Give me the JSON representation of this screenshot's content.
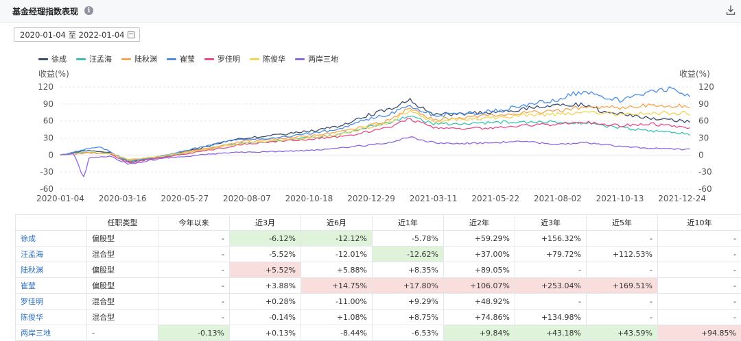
{
  "header": {
    "title": "基金经理指数表现",
    "info_icon": "info-icon",
    "download_icon": "download-icon"
  },
  "date_range": {
    "label": "2020-01-04 至 2022-01-04",
    "icon": "calendar-icon"
  },
  "colors": {
    "徐成": "#3d4d6e",
    "汪孟海": "#39c2b0",
    "陆秋渊": "#f6a44f",
    "崔莹": "#4a8ee8",
    "罗佳明": "#e84a8a",
    "陈俊华": "#f2d356",
    "两岸三地": "#8c66e0",
    "highlight_positive": "#f9dede",
    "highlight_negative": "#dff3da"
  },
  "chart_data": {
    "type": "line",
    "ylabel_left": "收益(%)",
    "ylabel_right": "收益(%)",
    "ylim": [
      -60,
      120
    ],
    "yticks": [
      120,
      90,
      60,
      30,
      0,
      -30,
      -60
    ],
    "x_ticks": [
      "2020-01-04",
      "2020-03-16",
      "2020-05-27",
      "2020-08-07",
      "2020-10-18",
      "2020-12-29",
      "2021-03-11",
      "2021-05-22",
      "2021-08-02",
      "2021-10-13",
      "2021-12-24"
    ],
    "x_start": "2020-01-04",
    "x_end": "2022-01-04",
    "grid": true,
    "legend_position": "top-left",
    "series": [
      {
        "name": "徐成",
        "points": [
          [
            "2020-01-04",
            0
          ],
          [
            "2020-02-03",
            8
          ],
          [
            "2020-03-01",
            5
          ],
          [
            "2020-03-23",
            -12
          ],
          [
            "2020-05-01",
            -2
          ],
          [
            "2020-06-15",
            12
          ],
          [
            "2020-07-15",
            25
          ],
          [
            "2020-08-07",
            30
          ],
          [
            "2020-09-10",
            35
          ],
          [
            "2020-10-18",
            42
          ],
          [
            "2020-11-20",
            50
          ],
          [
            "2020-12-29",
            72
          ],
          [
            "2021-01-20",
            82
          ],
          [
            "2021-02-10",
            98
          ],
          [
            "2021-03-11",
            72
          ],
          [
            "2021-04-10",
            72
          ],
          [
            "2021-05-22",
            76
          ],
          [
            "2021-06-25",
            82
          ],
          [
            "2021-08-02",
            86
          ],
          [
            "2021-09-01",
            90
          ],
          [
            "2021-09-20",
            78
          ],
          [
            "2021-10-13",
            72
          ],
          [
            "2021-11-15",
            66
          ],
          [
            "2021-12-24",
            60
          ],
          [
            "2022-01-04",
            58
          ]
        ]
      },
      {
        "name": "汪孟海",
        "points": [
          [
            "2020-01-04",
            0
          ],
          [
            "2020-02-03",
            5
          ],
          [
            "2020-03-01",
            3
          ],
          [
            "2020-03-23",
            -10
          ],
          [
            "2020-05-01",
            -3
          ],
          [
            "2020-06-15",
            8
          ],
          [
            "2020-07-15",
            18
          ],
          [
            "2020-08-07",
            22
          ],
          [
            "2020-09-10",
            25
          ],
          [
            "2020-10-18",
            30
          ],
          [
            "2020-11-20",
            36
          ],
          [
            "2020-12-29",
            50
          ],
          [
            "2021-01-20",
            58
          ],
          [
            "2021-02-10",
            70
          ],
          [
            "2021-03-11",
            55
          ],
          [
            "2021-04-10",
            55
          ],
          [
            "2021-05-22",
            58
          ],
          [
            "2021-06-25",
            58
          ],
          [
            "2021-08-02",
            58
          ],
          [
            "2021-09-01",
            56
          ],
          [
            "2021-10-13",
            48
          ],
          [
            "2021-11-15",
            43
          ],
          [
            "2021-12-24",
            38
          ],
          [
            "2022-01-04",
            36
          ]
        ]
      },
      {
        "name": "陆秋渊",
        "points": [
          [
            "2020-01-04",
            0
          ],
          [
            "2020-02-03",
            4
          ],
          [
            "2020-03-01",
            3
          ],
          [
            "2020-03-23",
            -10
          ],
          [
            "2020-05-01",
            -2
          ],
          [
            "2020-06-15",
            10
          ],
          [
            "2020-07-15",
            18
          ],
          [
            "2020-08-07",
            26
          ],
          [
            "2020-09-10",
            28
          ],
          [
            "2020-10-18",
            34
          ],
          [
            "2020-11-20",
            40
          ],
          [
            "2020-12-29",
            52
          ],
          [
            "2021-01-20",
            62
          ],
          [
            "2021-02-10",
            82
          ],
          [
            "2021-03-11",
            62
          ],
          [
            "2021-04-10",
            65
          ],
          [
            "2021-05-22",
            70
          ],
          [
            "2021-06-25",
            75
          ],
          [
            "2021-08-02",
            78
          ],
          [
            "2021-09-01",
            85
          ],
          [
            "2021-10-13",
            83
          ],
          [
            "2021-11-15",
            88
          ],
          [
            "2021-12-24",
            86
          ],
          [
            "2022-01-04",
            87
          ]
        ]
      },
      {
        "name": "崔莹",
        "points": [
          [
            "2020-01-04",
            0
          ],
          [
            "2020-02-03",
            10
          ],
          [
            "2020-02-20",
            14
          ],
          [
            "2020-03-01",
            6
          ],
          [
            "2020-03-23",
            -12
          ],
          [
            "2020-05-01",
            -2
          ],
          [
            "2020-06-15",
            14
          ],
          [
            "2020-07-15",
            24
          ],
          [
            "2020-08-07",
            28
          ],
          [
            "2020-09-10",
            30
          ],
          [
            "2020-10-18",
            38
          ],
          [
            "2020-11-20",
            45
          ],
          [
            "2020-12-29",
            65
          ],
          [
            "2021-01-20",
            72
          ],
          [
            "2021-02-10",
            88
          ],
          [
            "2021-03-11",
            70
          ],
          [
            "2021-04-10",
            72
          ],
          [
            "2021-05-22",
            78
          ],
          [
            "2021-06-25",
            88
          ],
          [
            "2021-08-02",
            98
          ],
          [
            "2021-08-20",
            108
          ],
          [
            "2021-09-10",
            110
          ],
          [
            "2021-10-13",
            96
          ],
          [
            "2021-11-15",
            112
          ],
          [
            "2021-12-10",
            116
          ],
          [
            "2021-12-24",
            106
          ],
          [
            "2022-01-04",
            104
          ]
        ]
      },
      {
        "name": "罗佳明",
        "points": [
          [
            "2020-01-04",
            0
          ],
          [
            "2020-02-03",
            4
          ],
          [
            "2020-03-01",
            2
          ],
          [
            "2020-03-23",
            -14
          ],
          [
            "2020-05-01",
            -4
          ],
          [
            "2020-06-15",
            6
          ],
          [
            "2020-07-15",
            14
          ],
          [
            "2020-08-07",
            20
          ],
          [
            "2020-09-10",
            24
          ],
          [
            "2020-10-18",
            28
          ],
          [
            "2020-11-20",
            32
          ],
          [
            "2020-12-29",
            42
          ],
          [
            "2021-01-20",
            50
          ],
          [
            "2021-02-10",
            64
          ],
          [
            "2021-03-11",
            48
          ],
          [
            "2021-04-10",
            46
          ],
          [
            "2021-05-22",
            48
          ],
          [
            "2021-06-25",
            52
          ],
          [
            "2021-08-02",
            54
          ],
          [
            "2021-09-01",
            58
          ],
          [
            "2021-10-13",
            52
          ],
          [
            "2021-11-15",
            55
          ],
          [
            "2021-12-24",
            50
          ],
          [
            "2022-01-04",
            48
          ]
        ]
      },
      {
        "name": "陈俊华",
        "points": [
          [
            "2020-01-04",
            0
          ],
          [
            "2020-02-03",
            4
          ],
          [
            "2020-03-01",
            3
          ],
          [
            "2020-03-23",
            -8
          ],
          [
            "2020-05-01",
            -2
          ],
          [
            "2020-06-15",
            8
          ],
          [
            "2020-07-15",
            16
          ],
          [
            "2020-08-07",
            22
          ],
          [
            "2020-09-10",
            25
          ],
          [
            "2020-10-18",
            30
          ],
          [
            "2020-11-20",
            36
          ],
          [
            "2020-12-29",
            50
          ],
          [
            "2021-01-20",
            58
          ],
          [
            "2021-02-10",
            78
          ],
          [
            "2021-03-11",
            60
          ],
          [
            "2021-04-10",
            62
          ],
          [
            "2021-05-22",
            66
          ],
          [
            "2021-06-25",
            70
          ],
          [
            "2021-08-02",
            72
          ],
          [
            "2021-09-01",
            76
          ],
          [
            "2021-10-13",
            72
          ],
          [
            "2021-11-15",
            74
          ],
          [
            "2021-12-24",
            74
          ],
          [
            "2022-01-04",
            73
          ]
        ]
      },
      {
        "name": "两岸三地",
        "points": [
          [
            "2020-01-04",
            0
          ],
          [
            "2020-01-20",
            2
          ],
          [
            "2020-01-28",
            -30
          ],
          [
            "2020-02-01",
            -40
          ],
          [
            "2020-02-06",
            -5
          ],
          [
            "2020-03-01",
            -2
          ],
          [
            "2020-03-23",
            -16
          ],
          [
            "2020-05-01",
            -6
          ],
          [
            "2020-06-15",
            0
          ],
          [
            "2020-07-15",
            4
          ],
          [
            "2020-08-07",
            5
          ],
          [
            "2020-09-10",
            6
          ],
          [
            "2020-10-18",
            8
          ],
          [
            "2020-11-20",
            12
          ],
          [
            "2020-12-29",
            18
          ],
          [
            "2021-01-20",
            22
          ],
          [
            "2021-02-10",
            32
          ],
          [
            "2021-03-11",
            22
          ],
          [
            "2021-04-10",
            20
          ],
          [
            "2021-05-22",
            22
          ],
          [
            "2021-06-25",
            24
          ],
          [
            "2021-08-02",
            18
          ],
          [
            "2021-09-01",
            22
          ],
          [
            "2021-10-13",
            15
          ],
          [
            "2021-11-15",
            12
          ],
          [
            "2021-12-24",
            10
          ],
          [
            "2022-01-04",
            10
          ]
        ]
      }
    ]
  },
  "table": {
    "headers": [
      "",
      "任职类型",
      "今年以来",
      "近3月",
      "近6月",
      "近1年",
      "近2年",
      "近3年",
      "近5年",
      "近10年"
    ],
    "rows": [
      {
        "name": "徐成",
        "type": "偏股型",
        "cells": [
          "-",
          "-6.12%",
          "-12.12%",
          "-5.78%",
          "+59.29%",
          "+156.32%",
          "-",
          "-"
        ],
        "hl": [
          "",
          "neg",
          "neg",
          "",
          "",
          "",
          "",
          ""
        ]
      },
      {
        "name": "汪孟海",
        "type": "混合型",
        "cells": [
          "-",
          "-5.52%",
          "-12.01%",
          "-12.62%",
          "+37.00%",
          "+79.72%",
          "+112.53%",
          "-"
        ],
        "hl": [
          "",
          "",
          "",
          "neg",
          "",
          "",
          "",
          ""
        ]
      },
      {
        "name": "陆秋渊",
        "type": "偏股型",
        "cells": [
          "-",
          "+5.52%",
          "+5.88%",
          "+8.35%",
          "+89.05%",
          "-",
          "-",
          "-"
        ],
        "hl": [
          "",
          "pos",
          "",
          "",
          "",
          "",
          "",
          ""
        ]
      },
      {
        "name": "崔莹",
        "type": "偏股型",
        "cells": [
          "-",
          "+3.88%",
          "+14.75%",
          "+17.80%",
          "+106.07%",
          "+253.04%",
          "+169.51%",
          "-"
        ],
        "hl": [
          "",
          "",
          "pos",
          "pos",
          "pos",
          "pos",
          "pos",
          ""
        ]
      },
      {
        "name": "罗佳明",
        "type": "混合型",
        "cells": [
          "-",
          "+0.28%",
          "-11.00%",
          "+9.29%",
          "+48.92%",
          "-",
          "-",
          "-"
        ],
        "hl": [
          "",
          "",
          "",
          "",
          "",
          "",
          "",
          ""
        ]
      },
      {
        "name": "陈俊华",
        "type": "混合型",
        "cells": [
          "-",
          "-0.14%",
          "+1.08%",
          "+8.75%",
          "+74.86%",
          "+134.98%",
          "-",
          "-"
        ],
        "hl": [
          "",
          "",
          "",
          "",
          "",
          "",
          "",
          ""
        ]
      },
      {
        "name": "两岸三地",
        "type": "-",
        "cells": [
          "-0.13%",
          "+0.13%",
          "-8.44%",
          "-6.53%",
          "+9.84%",
          "+43.18%",
          "+43.59%",
          "+94.85%"
        ],
        "hl": [
          "neg",
          "",
          "",
          "",
          "neg",
          "neg",
          "neg",
          "pos"
        ]
      }
    ]
  }
}
